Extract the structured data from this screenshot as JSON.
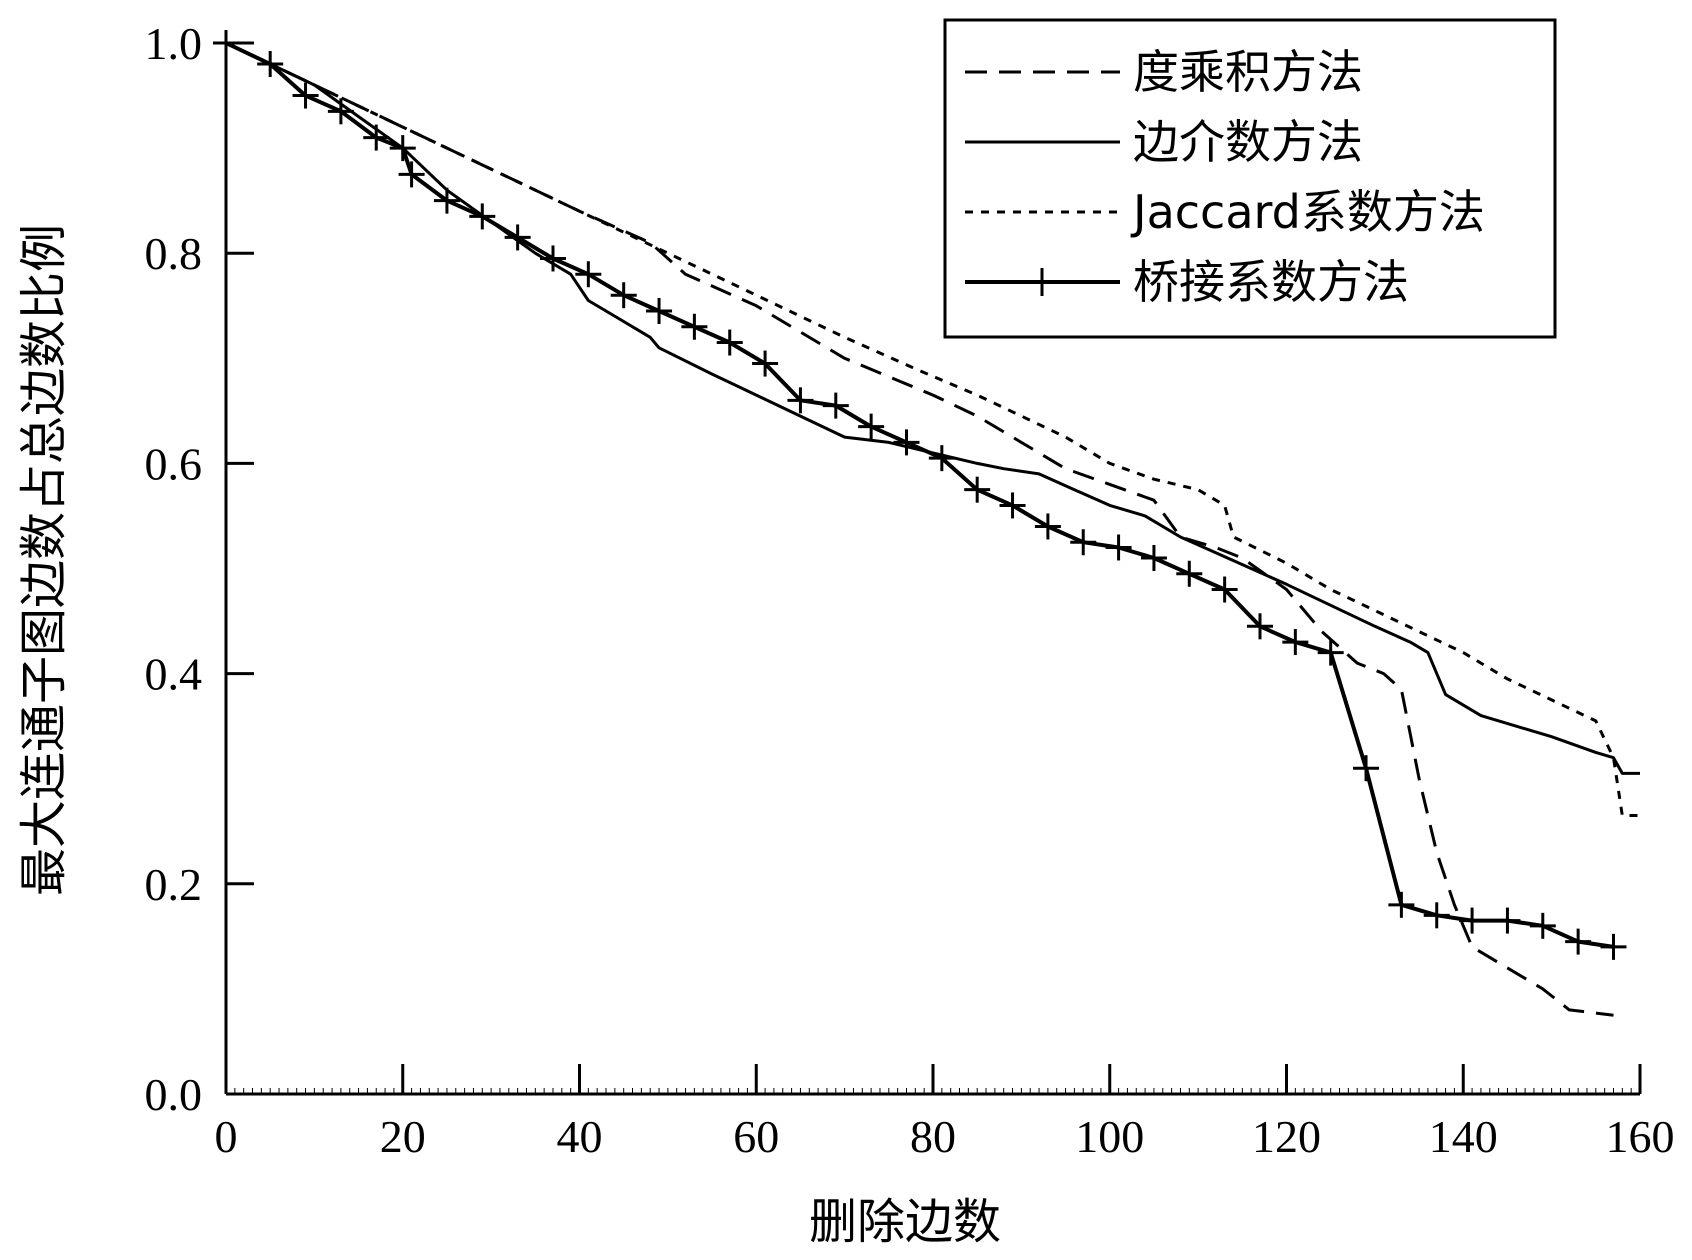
{
  "chart_data": {
    "type": "line",
    "title": "",
    "xlabel": "删除边数",
    "ylabel": "最大连通子图边数占总边数比例",
    "xlim": [
      0,
      160
    ],
    "ylim": [
      0,
      1.0
    ],
    "xticks": [
      0,
      20,
      40,
      60,
      80,
      100,
      120,
      140,
      160
    ],
    "yticks": [
      0.0,
      0.2,
      0.4,
      0.6,
      0.8,
      1.0
    ],
    "xtick_labels": [
      "0",
      "20",
      "40",
      "60",
      "80",
      "100",
      "120",
      "140",
      "160"
    ],
    "ytick_labels": [
      "0.0",
      "0.2",
      "0.4",
      "0.6",
      "0.8",
      "1.0"
    ],
    "grid": false,
    "legend_position": "top-right",
    "series": [
      {
        "name": "度乘积方法",
        "style": "dashed",
        "x": [
          0,
          10,
          20,
          30,
          40,
          48,
          52,
          60,
          70,
          80,
          85,
          90,
          95,
          100,
          105,
          108,
          112,
          115,
          120,
          124,
          128,
          131,
          133,
          135,
          137,
          139,
          141,
          145,
          149,
          152,
          157
        ],
        "y": [
          1.0,
          0.96,
          0.92,
          0.88,
          0.84,
          0.81,
          0.78,
          0.75,
          0.7,
          0.665,
          0.645,
          0.62,
          0.595,
          0.58,
          0.565,
          0.53,
          0.52,
          0.51,
          0.48,
          0.44,
          0.41,
          0.4,
          0.385,
          0.3,
          0.23,
          0.18,
          0.14,
          0.12,
          0.1,
          0.08,
          0.075
        ]
      },
      {
        "name": "边介数方法",
        "style": "solid",
        "x": [
          0,
          5,
          10,
          15,
          20,
          25,
          30,
          35,
          39,
          41,
          45,
          48,
          49,
          55,
          60,
          65,
          70,
          75,
          80,
          85,
          88,
          92,
          96,
          100,
          104,
          108,
          112,
          116,
          120,
          125,
          130,
          134,
          136,
          138,
          142,
          146,
          150,
          155,
          157,
          158,
          160
        ],
        "y": [
          1.0,
          0.98,
          0.96,
          0.93,
          0.9,
          0.86,
          0.83,
          0.8,
          0.78,
          0.755,
          0.735,
          0.72,
          0.71,
          0.685,
          0.665,
          0.645,
          0.625,
          0.62,
          0.61,
          0.6,
          0.595,
          0.59,
          0.575,
          0.56,
          0.55,
          0.53,
          0.515,
          0.5,
          0.485,
          0.465,
          0.445,
          0.43,
          0.42,
          0.38,
          0.36,
          0.35,
          0.34,
          0.325,
          0.32,
          0.305,
          0.305
        ]
      },
      {
        "name": "Jaccard系数方法",
        "style": "dotted",
        "x": [
          0,
          10,
          20,
          30,
          40,
          50,
          60,
          70,
          78,
          85,
          90,
          95,
          100,
          105,
          110,
          113,
          114,
          120,
          125,
          130,
          135,
          140,
          145,
          150,
          155,
          157,
          158,
          160
        ],
        "y": [
          1.0,
          0.96,
          0.92,
          0.88,
          0.84,
          0.8,
          0.76,
          0.72,
          0.69,
          0.665,
          0.645,
          0.625,
          0.6,
          0.585,
          0.575,
          0.56,
          0.53,
          0.505,
          0.48,
          0.46,
          0.44,
          0.42,
          0.395,
          0.375,
          0.355,
          0.32,
          0.265,
          0.265
        ]
      },
      {
        "name": "桥接系数方法",
        "style": "solid-plus",
        "x": [
          0,
          5,
          9,
          13,
          17,
          20,
          21,
          25,
          29,
          33,
          37,
          41,
          45,
          49,
          53,
          57,
          61,
          65,
          69,
          73,
          77,
          81,
          85,
          89,
          93,
          97,
          101,
          105,
          109,
          113,
          117,
          121,
          125,
          129,
          133,
          137,
          141,
          145,
          149,
          153,
          157
        ],
        "y": [
          1.0,
          0.98,
          0.95,
          0.935,
          0.91,
          0.9,
          0.875,
          0.85,
          0.835,
          0.815,
          0.795,
          0.78,
          0.76,
          0.745,
          0.73,
          0.715,
          0.695,
          0.66,
          0.655,
          0.635,
          0.62,
          0.605,
          0.575,
          0.56,
          0.54,
          0.525,
          0.52,
          0.51,
          0.495,
          0.48,
          0.445,
          0.43,
          0.42,
          0.31,
          0.18,
          0.17,
          0.165,
          0.165,
          0.16,
          0.145,
          0.14
        ]
      }
    ]
  }
}
